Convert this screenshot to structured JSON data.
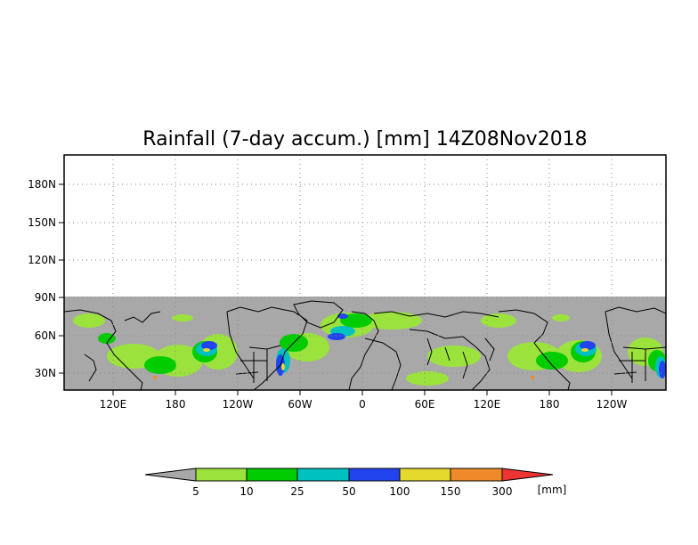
{
  "map": {
    "title": "Rainfall (7-day accum.) [mm] 14Z08Nov2018",
    "lat_labels": [
      "180N",
      "150N",
      "120N",
      "90N",
      "60N",
      "30N"
    ],
    "lon_labels": [
      "120E",
      "180",
      "120W",
      "60W",
      "0",
      "60E",
      "120E",
      "180",
      "120W"
    ],
    "no_data_color": "#a8a8a8",
    "land_outline_color": "#000000"
  },
  "colorbar": {
    "unit": "[mm]",
    "tick_labels": [
      "5",
      "10",
      "25",
      "50",
      "100",
      "150",
      "300"
    ],
    "colors": [
      "#a8a8a8",
      "#9be33c",
      "#00cc00",
      "#00c0c0",
      "#2244ee",
      "#e6d92e",
      "#ef8a2a",
      "#ee3333"
    ]
  }
}
